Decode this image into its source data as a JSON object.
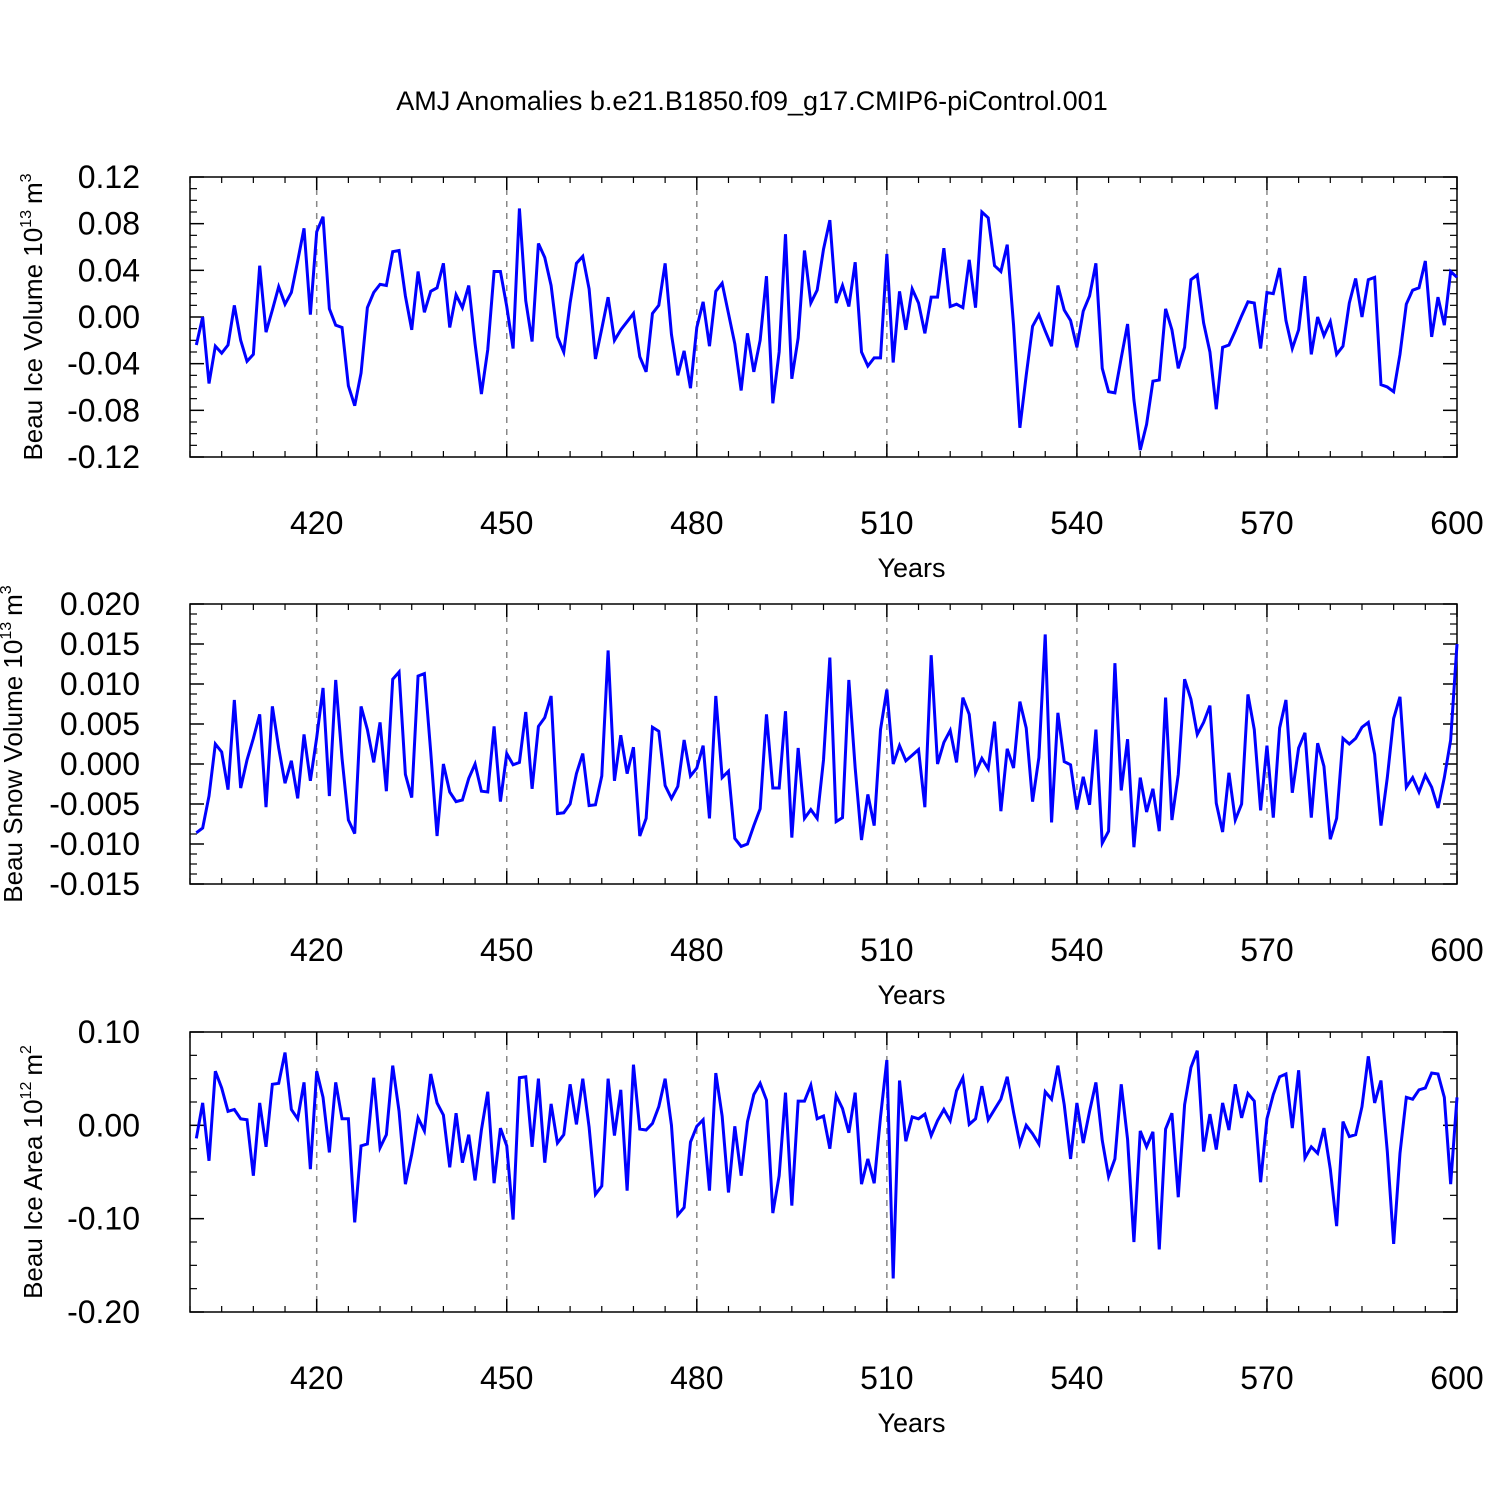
{
  "figure": {
    "title": "AMJ Anomalies b.e21.B1850.f09_g17.CMIP6-piControl.001",
    "line_color": "#0000ff"
  },
  "chart_data": [
    {
      "type": "line",
      "xlabel": "Years",
      "ylabel": "Beau Ice Volume 10",
      "ylabel_exp": "13",
      "ylabel_unit": "m",
      "ylabel_unit_exp": "3",
      "xlim": [
        400,
        600
      ],
      "ylim": [
        -0.12,
        0.12
      ],
      "x_ticks": [
        420,
        450,
        480,
        510,
        540,
        570,
        600
      ],
      "x_tick_labels": [
        "420",
        "450",
        "480",
        "510",
        "540",
        "570",
        "600"
      ],
      "y_ticks": [
        -0.12,
        -0.08,
        -0.04,
        0.0,
        0.04,
        0.08,
        0.12
      ],
      "y_tick_labels": [
        "-0.12",
        "-0.08",
        "-0.04",
        "0.00",
        "0.04",
        "0.08",
        "0.12"
      ],
      "grid": "vertical dashed at major x ticks",
      "x_start": 401,
      "series": [
        {
          "values": [
            -0.024,
            0.0,
            -0.057,
            -0.025,
            -0.031,
            -0.024,
            0.01,
            -0.02,
            -0.038,
            -0.032,
            0.044,
            -0.013,
            0.006,
            0.026,
            0.011,
            0.021,
            0.048,
            0.076,
            0.002,
            0.073,
            0.086,
            0.007,
            -0.007,
            -0.009,
            -0.059,
            -0.076,
            -0.048,
            0.008,
            0.021,
            0.028,
            0.027,
            0.056,
            0.057,
            0.018,
            -0.011,
            0.039,
            0.004,
            0.022,
            0.025,
            0.046,
            -0.009,
            0.019,
            0.008,
            0.027,
            -0.023,
            -0.066,
            -0.028,
            0.039,
            0.039,
            0.009,
            -0.027,
            0.093,
            0.014,
            -0.021,
            0.063,
            0.051,
            0.027,
            -0.017,
            -0.03,
            0.012,
            0.046,
            0.052,
            0.024,
            -0.036,
            -0.01,
            0.017,
            -0.02,
            -0.011,
            -0.004,
            0.003,
            -0.034,
            -0.047,
            0.003,
            0.01,
            0.046,
            -0.015,
            -0.05,
            -0.029,
            -0.061,
            -0.009,
            0.013,
            -0.025,
            0.022,
            0.029,
            0.003,
            -0.023,
            -0.063,
            -0.014,
            -0.047,
            -0.02,
            0.035,
            -0.074,
            -0.03,
            0.071,
            -0.053,
            -0.018,
            0.057,
            0.012,
            0.023,
            0.058,
            0.083,
            0.012,
            0.027,
            0.009,
            0.047,
            -0.03,
            -0.042,
            -0.035,
            -0.035,
            0.054,
            -0.039,
            0.022,
            -0.011,
            0.024,
            0.012,
            -0.014,
            0.017,
            0.017,
            0.059,
            0.009,
            0.011,
            0.008,
            0.049,
            0.008,
            0.09,
            0.085,
            0.044,
            0.039,
            0.062,
            -0.007,
            -0.095,
            -0.05,
            -0.008,
            0.002,
            -0.012,
            -0.025,
            0.027,
            0.006,
            -0.003,
            -0.026,
            0.005,
            0.018,
            0.046,
            -0.044,
            -0.064,
            -0.065,
            -0.035,
            -0.006,
            -0.071,
            -0.114,
            -0.092,
            -0.055,
            -0.054,
            0.007,
            -0.011,
            -0.044,
            -0.026,
            0.032,
            0.036,
            -0.005,
            -0.03,
            -0.079,
            -0.026,
            -0.024,
            -0.012,
            0.001,
            0.013,
            0.012,
            -0.027,
            0.021,
            0.02,
            0.042,
            -0.003,
            -0.027,
            -0.011,
            0.035,
            -0.032,
            0.0,
            -0.016,
            -0.004,
            -0.032,
            -0.025,
            0.012,
            0.033,
            0.0,
            0.032,
            0.034,
            -0.058,
            -0.06,
            -0.064,
            -0.032,
            0.011,
            0.023,
            0.025,
            0.048,
            -0.017,
            0.017,
            -0.007,
            0.039,
            0.034
          ]
        }
      ]
    },
    {
      "type": "line",
      "xlabel": "Years",
      "ylabel": "Beau Snow Volume 10",
      "ylabel_exp": "13",
      "ylabel_unit": "m",
      "ylabel_unit_exp": "3",
      "xlim": [
        400,
        600
      ],
      "ylim": [
        -0.015,
        0.02
      ],
      "x_ticks": [
        420,
        450,
        480,
        510,
        540,
        570,
        600
      ],
      "x_tick_labels": [
        "420",
        "450",
        "480",
        "510",
        "540",
        "570",
        "600"
      ],
      "y_ticks": [
        -0.015,
        -0.01,
        -0.005,
        0.0,
        0.005,
        0.01,
        0.015,
        0.02
      ],
      "y_tick_labels": [
        "-0.015",
        "-0.010",
        "-0.005",
        "0.000",
        "0.005",
        "0.010",
        "0.015",
        "0.020"
      ],
      "grid": "vertical dashed at major x ticks",
      "x_start": 401,
      "series": [
        {
          "values": [
            -0.0086,
            -0.008,
            -0.004,
            0.0025,
            0.0015,
            -0.0032,
            0.008,
            -0.003,
            0.0005,
            0.0032,
            0.0062,
            -0.0054,
            0.0072,
            0.002,
            -0.0024,
            0.0004,
            -0.0043,
            0.0037,
            -0.0021,
            0.0033,
            0.0095,
            -0.004,
            0.0105,
            0.0007,
            -0.007,
            -0.0087,
            0.0072,
            0.0043,
            0.0002,
            0.0052,
            -0.0034,
            0.0106,
            0.0115,
            -0.0013,
            -0.0042,
            0.011,
            0.0113,
            0.0015,
            -0.009,
            0.0,
            -0.0035,
            -0.0047,
            -0.0045,
            -0.0018,
            0.0,
            -0.0034,
            -0.0035,
            0.0047,
            -0.0047,
            0.0013,
            -0.0001,
            0.0002,
            0.0065,
            -0.0031,
            0.0047,
            0.0058,
            0.0085,
            -0.0062,
            -0.0061,
            -0.005,
            -0.0012,
            0.0013,
            -0.0052,
            -0.0051,
            -0.0015,
            0.0142,
            -0.0021,
            0.0036,
            -0.0012,
            0.0021,
            -0.009,
            -0.0068,
            0.0046,
            0.0041,
            -0.0027,
            -0.0043,
            -0.0028,
            0.003,
            -0.0015,
            -0.0005,
            0.0023,
            -0.0068,
            0.0085,
            -0.0017,
            -0.0009,
            -0.0093,
            -0.0103,
            -0.01,
            -0.0077,
            -0.0056,
            0.0062,
            -0.003,
            -0.003,
            0.0066,
            -0.0092,
            0.002,
            -0.0068,
            -0.0057,
            -0.0068,
            0.0005,
            0.0133,
            -0.0072,
            -0.0067,
            0.0105,
            -0.0005,
            -0.0095,
            -0.0038,
            -0.0077,
            0.0043,
            0.0093,
            0.0,
            0.0023,
            0.0004,
            0.0011,
            0.0018,
            -0.0054,
            0.0136,
            0.0,
            0.0027,
            0.0042,
            0.0002,
            0.0083,
            0.0062,
            -0.0011,
            0.0007,
            -0.0006,
            0.0053,
            -0.0059,
            0.0019,
            -0.0005,
            0.0078,
            0.0045,
            -0.0047,
            0.0008,
            0.0162,
            -0.0073,
            0.0064,
            0.0003,
            -0.0001,
            -0.0057,
            -0.0016,
            -0.0051,
            0.0043,
            -0.0099,
            -0.0084,
            0.0126,
            -0.0033,
            0.0031,
            -0.0104,
            -0.0017,
            -0.006,
            -0.0031,
            -0.0084,
            0.0083,
            -0.007,
            -0.0013,
            0.0106,
            0.0081,
            0.0037,
            0.0052,
            0.0073,
            -0.0049,
            -0.0085,
            -0.0011,
            -0.007,
            -0.005,
            0.0087,
            0.0043,
            -0.0058,
            0.0023,
            -0.0067,
            0.0045,
            0.008,
            -0.0036,
            0.002,
            0.0039,
            -0.0067,
            0.0026,
            -0.0003,
            -0.0094,
            -0.0068,
            0.0032,
            0.0025,
            0.0032,
            0.0046,
            0.0052,
            0.0012,
            -0.0077,
            -0.0017,
            0.0057,
            0.0084,
            -0.0029,
            -0.0017,
            -0.0035,
            -0.0014,
            -0.0029,
            -0.0055,
            -0.0017,
            0.003,
            0.015
          ]
        }
      ]
    },
    {
      "type": "line",
      "xlabel": "Years",
      "ylabel": "Beau Ice Area 10",
      "ylabel_exp": "12",
      "ylabel_unit": "m",
      "ylabel_unit_exp": "2",
      "xlim": [
        400,
        600
      ],
      "ylim": [
        -0.2,
        0.1
      ],
      "x_ticks": [
        420,
        450,
        480,
        510,
        540,
        570,
        600
      ],
      "x_tick_labels": [
        "420",
        "450",
        "480",
        "510",
        "540",
        "570",
        "600"
      ],
      "y_ticks": [
        -0.2,
        -0.1,
        0.0,
        0.1
      ],
      "y_tick_labels": [
        "-0.20",
        "-0.10",
        "0.00",
        "0.10"
      ],
      "grid": "vertical dashed at major x ticks",
      "x_start": 401,
      "series": [
        {
          "values": [
            -0.014,
            0.024,
            -0.038,
            0.058,
            0.04,
            0.015,
            0.017,
            0.007,
            0.006,
            -0.054,
            0.024,
            -0.023,
            0.044,
            0.045,
            0.078,
            0.017,
            0.007,
            0.046,
            -0.047,
            0.058,
            0.03,
            -0.029,
            0.046,
            0.007,
            0.007,
            -0.104,
            -0.022,
            -0.02,
            0.051,
            -0.024,
            -0.01,
            0.064,
            0.015,
            -0.063,
            -0.031,
            0.008,
            -0.006,
            0.055,
            0.024,
            0.011,
            -0.045,
            0.013,
            -0.04,
            -0.01,
            -0.059,
            -0.005,
            0.036,
            -0.062,
            -0.003,
            -0.022,
            -0.101,
            0.051,
            0.052,
            -0.023,
            0.05,
            -0.04,
            0.023,
            -0.019,
            -0.01,
            0.044,
            0.001,
            0.05,
            -0.002,
            -0.074,
            -0.065,
            0.05,
            -0.011,
            0.038,
            -0.07,
            0.065,
            -0.004,
            -0.005,
            0.002,
            0.02,
            0.05,
            0.0,
            -0.096,
            -0.088,
            -0.018,
            -0.001,
            0.006,
            -0.07,
            0.056,
            0.01,
            -0.072,
            -0.001,
            -0.054,
            0.004,
            0.033,
            0.045,
            0.027,
            -0.094,
            -0.054,
            0.035,
            -0.086,
            0.026,
            0.026,
            0.043,
            0.007,
            0.01,
            -0.025,
            0.032,
            0.018,
            -0.008,
            0.035,
            -0.063,
            -0.036,
            -0.062,
            0.009,
            0.07,
            -0.164,
            0.048,
            -0.017,
            0.009,
            0.007,
            0.012,
            -0.011,
            0.005,
            0.017,
            0.005,
            0.037,
            0.051,
            0.001,
            0.007,
            0.042,
            0.006,
            0.017,
            0.028,
            0.052,
            0.014,
            -0.02,
            0.0,
            -0.009,
            -0.02,
            0.036,
            0.028,
            0.064,
            0.022,
            -0.036,
            0.024,
            -0.019,
            0.015,
            0.046,
            -0.016,
            -0.055,
            -0.036,
            0.044,
            -0.015,
            -0.125,
            -0.006,
            -0.023,
            -0.007,
            -0.133,
            -0.004,
            0.013,
            -0.077,
            0.022,
            0.062,
            0.08,
            -0.028,
            0.012,
            -0.026,
            0.024,
            -0.005,
            0.044,
            0.008,
            0.034,
            0.026,
            -0.061,
            0.007,
            0.033,
            0.052,
            0.055,
            -0.003,
            0.059,
            -0.035,
            -0.023,
            -0.03,
            -0.003,
            -0.047,
            -0.108,
            0.004,
            -0.012,
            -0.01,
            0.02,
            0.074,
            0.024,
            0.048,
            -0.028,
            -0.127,
            -0.03,
            0.03,
            0.028,
            0.038,
            0.04,
            0.056,
            0.055,
            0.03,
            -0.063,
            0.03
          ]
        }
      ]
    }
  ]
}
